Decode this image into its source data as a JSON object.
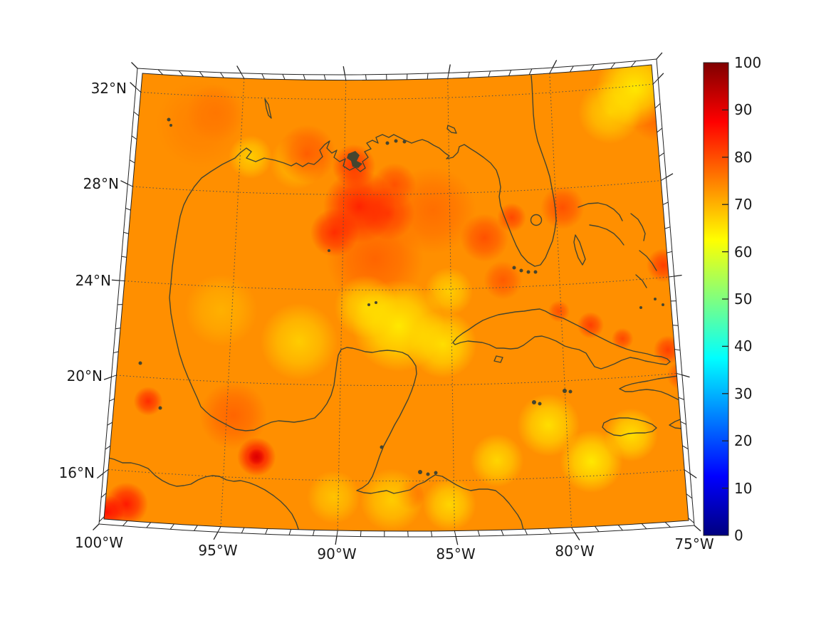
{
  "figure": {
    "background": "#ffffff"
  },
  "map": {
    "lat_ticks": [
      {
        "v": 32,
        "label": "32°N"
      },
      {
        "v": 28,
        "label": "28°N"
      },
      {
        "v": 24,
        "label": "24°N"
      },
      {
        "v": 20,
        "label": "20°N"
      },
      {
        "v": 16,
        "label": "16°N"
      }
    ],
    "lon_ticks": [
      {
        "v": -100,
        "label": "100°W"
      },
      {
        "v": -95,
        "label": "95°W"
      },
      {
        "v": -90,
        "label": "90°W"
      },
      {
        "v": -85,
        "label": "85°W"
      },
      {
        "v": -80,
        "label": "80°W"
      },
      {
        "v": -75,
        "label": "75°W"
      }
    ],
    "grid": {
      "lats": [
        32,
        28,
        24,
        20,
        16
      ],
      "lons": [
        -95,
        -90,
        -85,
        -80
      ]
    },
    "colors": {
      "coastline": "#45452F",
      "gridline": "#4d4d4d",
      "frame": "#222222",
      "label": "#1a1a1a"
    }
  },
  "colorbar": {
    "min": 0,
    "max": 100,
    "ticks": [
      {
        "v": 100,
        "label": "100"
      },
      {
        "v": 90,
        "label": "90"
      },
      {
        "v": 80,
        "label": "80"
      },
      {
        "v": 70,
        "label": "70"
      },
      {
        "v": 60,
        "label": "60"
      },
      {
        "v": 50,
        "label": "50"
      },
      {
        "v": 40,
        "label": "40"
      },
      {
        "v": 30,
        "label": "30"
      },
      {
        "v": 20,
        "label": "20"
      },
      {
        "v": 10,
        "label": "10"
      },
      {
        "v": 0,
        "label": "0"
      }
    ],
    "colormap": "jet"
  },
  "chart_data": {
    "type": "heatmap",
    "region": "Gulf of Mexico and northwest Caribbean",
    "projection": "lambert-conformal-like trapezoid",
    "value_range": [
      0,
      100
    ],
    "lat_range_shown": [
      14,
      33
    ],
    "lon_range_shown": [
      -100,
      -75
    ],
    "background_value": 73.5,
    "hotspots": [
      [
        -87.4,
        22.5,
        64,
        1.9
      ],
      [
        -88.9,
        23.3,
        66,
        1.3
      ],
      [
        -85.4,
        21.7,
        65,
        1.4
      ],
      [
        -85.1,
        23.9,
        67,
        1.0
      ],
      [
        -91.9,
        21.8,
        67,
        1.6
      ],
      [
        -95.5,
        23.0,
        70,
        1.5
      ],
      [
        -75.9,
        31.9,
        64,
        1.6
      ],
      [
        -77.2,
        31.0,
        67,
        1.3
      ],
      [
        -80.8,
        18.2,
        65,
        1.3
      ],
      [
        -79.0,
        16.6,
        64,
        1.3
      ],
      [
        -77.2,
        17.6,
        65,
        1.1
      ],
      [
        -83.1,
        16.8,
        66,
        1.1
      ],
      [
        -87.7,
        15.2,
        67,
        1.3
      ],
      [
        -85.2,
        15.0,
        66,
        1.1
      ],
      [
        -90.2,
        15.3,
        68,
        1.1
      ],
      [
        -94.5,
        29.5,
        67,
        0.9
      ],
      [
        -92.3,
        29.3,
        69,
        1.1
      ],
      [
        -97.0,
        30.8,
        75,
        1.8
      ],
      [
        -96.3,
        31.3,
        76,
        1.2
      ],
      [
        -91.8,
        29.7,
        79,
        1.2
      ],
      [
        -89.55,
        29.2,
        83,
        0.9
      ],
      [
        -87.6,
        28.4,
        80,
        0.9
      ],
      [
        -89.25,
        27.5,
        85,
        1.5
      ],
      [
        -90.4,
        26.4,
        84,
        1.0
      ],
      [
        -87.9,
        27.2,
        82,
        1.1
      ],
      [
        -88.5,
        25.3,
        78,
        2.0
      ],
      [
        -85.8,
        27.3,
        77,
        1.8
      ],
      [
        -83.4,
        26.1,
        80,
        1.0
      ],
      [
        -82.6,
        24.3,
        79,
        0.8
      ],
      [
        -82.1,
        26.9,
        81,
        0.6
      ],
      [
        -79.7,
        27.2,
        80,
        0.9
      ],
      [
        -74.9,
        30.8,
        78,
        1.2
      ],
      [
        -75.2,
        24.5,
        82,
        0.7
      ],
      [
        -78.7,
        22.25,
        82,
        0.55
      ],
      [
        -80.1,
        22.9,
        80,
        0.45
      ],
      [
        -77.3,
        21.6,
        81,
        0.45
      ],
      [
        -75.3,
        21.0,
        82,
        0.6
      ],
      [
        -74.8,
        19.9,
        80,
        0.6
      ],
      [
        -86.9,
        15.4,
        79,
        0.6
      ],
      [
        -94.7,
        18.6,
        78,
        1.4
      ],
      [
        -98.5,
        19.0,
        84,
        0.6
      ],
      [
        -93.6,
        16.9,
        88,
        0.8
      ],
      [
        -93.6,
        16.9,
        91,
        0.35
      ],
      [
        -99.1,
        14.6,
        86,
        0.9
      ],
      [
        -99.9,
        14.2,
        87,
        0.7
      ]
    ]
  }
}
